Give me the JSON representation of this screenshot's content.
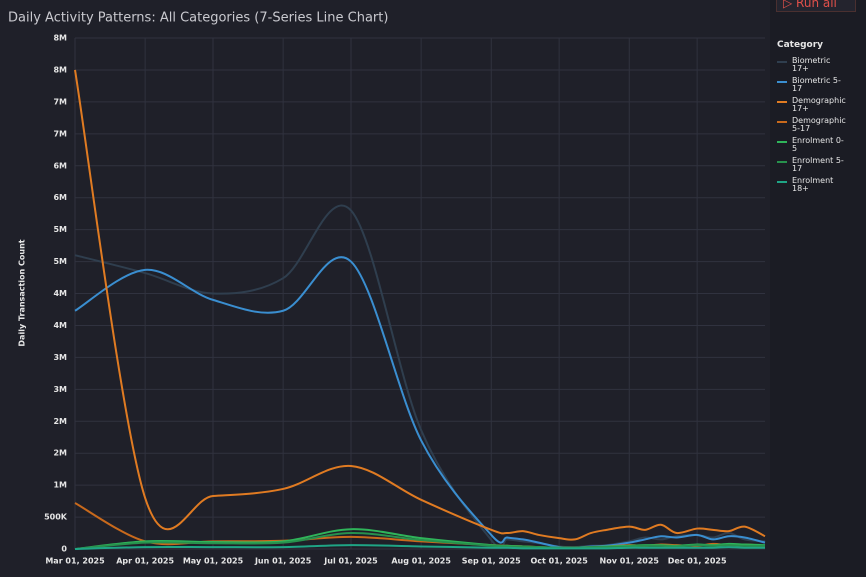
{
  "toolbar": {
    "button": "Run all"
  },
  "chart_data": {
    "type": "line",
    "title": "Daily Activity Patterns: All Categories (7-Series Line Chart)",
    "y_label": "Daily Transaction Count",
    "legend_title": "Category",
    "legend": "right",
    "grid": true,
    "x": [
      "2025-03-01",
      "2025-04-01",
      "2025-05-01",
      "2025-06-01",
      "2025-07-01",
      "2025-08-01",
      "2025-09-01",
      "2025-09-08",
      "2025-09-15",
      "2025-09-22",
      "2025-10-01",
      "2025-10-08",
      "2025-10-15",
      "2025-10-22",
      "2025-11-01",
      "2025-11-08",
      "2025-11-15",
      "2025-11-22",
      "2025-12-01",
      "2025-12-08",
      "2025-12-15",
      "2025-12-22",
      "2025-12-31"
    ],
    "xlim": [
      "2025-03-01",
      "2025-12-31"
    ],
    "xticks": [
      {
        "value": "2025-03-01",
        "label": "Mar 01, 2025"
      },
      {
        "value": "2025-04-01",
        "label": "Apr 01, 2025"
      },
      {
        "value": "2025-05-01",
        "label": "May 01, 2025"
      },
      {
        "value": "2025-06-01",
        "label": "Jun 01, 2025"
      },
      {
        "value": "2025-07-01",
        "label": "Jul 01, 2025"
      },
      {
        "value": "2025-08-01",
        "label": "Aug 01, 2025"
      },
      {
        "value": "2025-09-01",
        "label": "Sep 01, 2025"
      },
      {
        "value": "2025-10-01",
        "label": "Oct 01, 2025"
      },
      {
        "value": "2025-11-01",
        "label": "Nov 01, 2025"
      },
      {
        "value": "2025-12-01",
        "label": "Dec 01, 2025"
      }
    ],
    "ylim": [
      0,
      8000000
    ],
    "yticks": [
      0,
      {
        "value": 500000,
        "label": "500K"
      },
      {
        "value": 1000000,
        "label": "1M"
      },
      {
        "value": 1500000,
        "label": "2M"
      },
      {
        "value": 2000000,
        "label": "2M"
      },
      {
        "value": 2500000,
        "label": "3M"
      },
      {
        "value": 3000000,
        "label": "3M"
      },
      {
        "value": 3500000,
        "label": "4M"
      },
      {
        "value": 4000000,
        "label": "4M"
      },
      {
        "value": 4500000,
        "label": "5M"
      },
      {
        "value": 5000000,
        "label": "5M"
      },
      {
        "value": 5500000,
        "label": "6M"
      },
      {
        "value": 6000000,
        "label": "6M"
      },
      {
        "value": 6500000,
        "label": "7M"
      },
      {
        "value": 7000000,
        "label": "7M"
      },
      {
        "value": 7500000,
        "label": "8M"
      },
      {
        "value": 8000000,
        "label": "8M"
      }
    ],
    "series": [
      {
        "name": "Biometric 17+",
        "color": "#2f3e4e",
        "values": [
          4600000,
          4320000,
          4000000,
          4240000,
          5300000,
          1860000,
          140000,
          150000,
          120000,
          90000,
          40000,
          30000,
          50000,
          60000,
          120000,
          180000,
          150000,
          200000,
          220000,
          180000,
          250000,
          150000,
          120000
        ]
      },
      {
        "name": "Biometric 5-17",
        "color": "#3a8ed0",
        "values": [
          3730000,
          4370000,
          3900000,
          3730000,
          4500000,
          1700000,
          220000,
          180000,
          150000,
          100000,
          30000,
          20000,
          40000,
          50000,
          100000,
          150000,
          200000,
          180000,
          220000,
          150000,
          200000,
          180000,
          100000
        ]
      },
      {
        "name": "Demographic 17+",
        "color": "#e07b22",
        "values": [
          7500000,
          800000,
          830000,
          940000,
          1300000,
          770000,
          300000,
          250000,
          280000,
          220000,
          170000,
          150000,
          250000,
          300000,
          350000,
          300000,
          380000,
          250000,
          320000,
          300000,
          280000,
          350000,
          200000
        ]
      },
      {
        "name": "Demographic 5-17",
        "color": "#c8691c",
        "values": [
          720000,
          120000,
          120000,
          130000,
          190000,
          120000,
          60000,
          50000,
          40000,
          30000,
          20000,
          20000,
          30000,
          40000,
          60000,
          50000,
          70000,
          60000,
          50000,
          80000,
          60000,
          70000,
          50000
        ]
      },
      {
        "name": "Enrolment 0-5",
        "color": "#2fb45a",
        "values": [
          0,
          120000,
          110000,
          120000,
          310000,
          170000,
          60000,
          50000,
          40000,
          30000,
          20000,
          20000,
          30000,
          40000,
          50000,
          60000,
          60000,
          50000,
          70000,
          60000,
          80000,
          70000,
          60000
        ]
      },
      {
        "name": "Enrolment 5-17",
        "color": "#27914d",
        "values": [
          0,
          100000,
          90000,
          100000,
          250000,
          140000,
          50000,
          40000,
          30000,
          30000,
          20000,
          20000,
          30000,
          30000,
          40000,
          50000,
          50000,
          40000,
          60000,
          50000,
          60000,
          50000,
          50000
        ]
      },
      {
        "name": "Enrolment 18+",
        "color": "#1fa585",
        "values": [
          0,
          30000,
          30000,
          30000,
          60000,
          40000,
          20000,
          20000,
          10000,
          10000,
          10000,
          10000,
          10000,
          10000,
          20000,
          20000,
          20000,
          20000,
          20000,
          20000,
          30000,
          20000,
          20000
        ]
      }
    ]
  }
}
